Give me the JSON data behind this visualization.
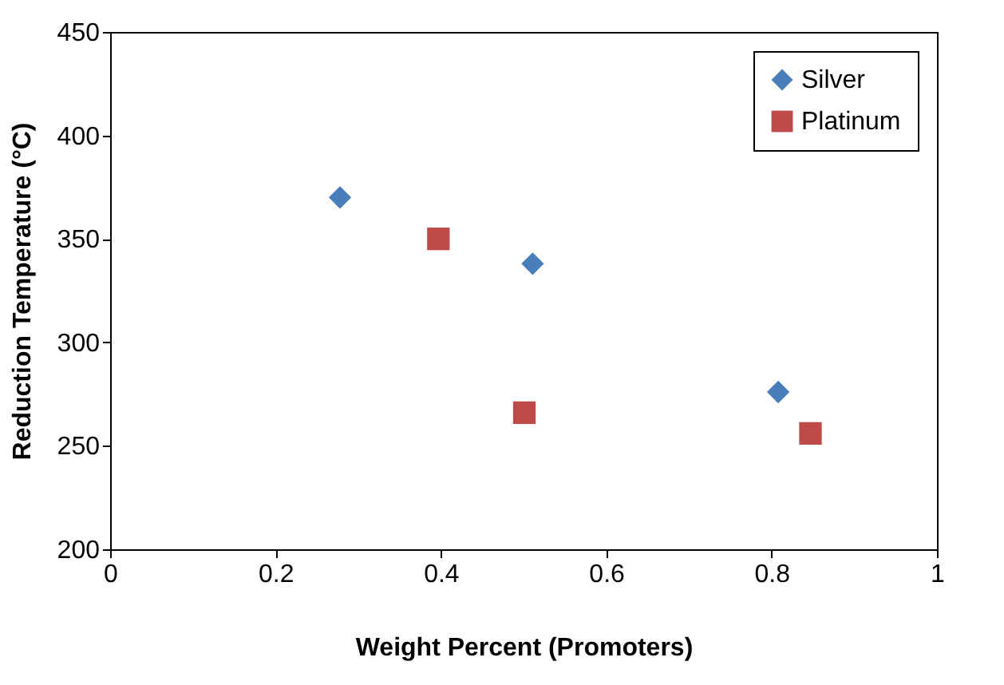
{
  "chart_data": {
    "type": "scatter",
    "xlabel": "Weight Percent (Promoters)",
    "ylabel": "Reduction Temperature (°C)",
    "xlim": [
      0,
      1
    ],
    "xticks": [
      0,
      0.2,
      0.4,
      0.6,
      0.8,
      1
    ],
    "ylim": [
      200,
      450
    ],
    "yticks": [
      200,
      250,
      300,
      350,
      400,
      450
    ],
    "grid": false,
    "legend": "top right",
    "series": [
      {
        "name": "Silver",
        "color": "#4a7ebb",
        "marker": "diamond",
        "x": [
          0.278,
          0.511,
          0.808
        ],
        "values": [
          370,
          338,
          276
        ]
      },
      {
        "name": "Platinum",
        "color": "#be4b48",
        "marker": "square",
        "x": [
          0.397,
          0.501,
          0.847
        ],
        "values": [
          350,
          266,
          256
        ]
      }
    ]
  }
}
